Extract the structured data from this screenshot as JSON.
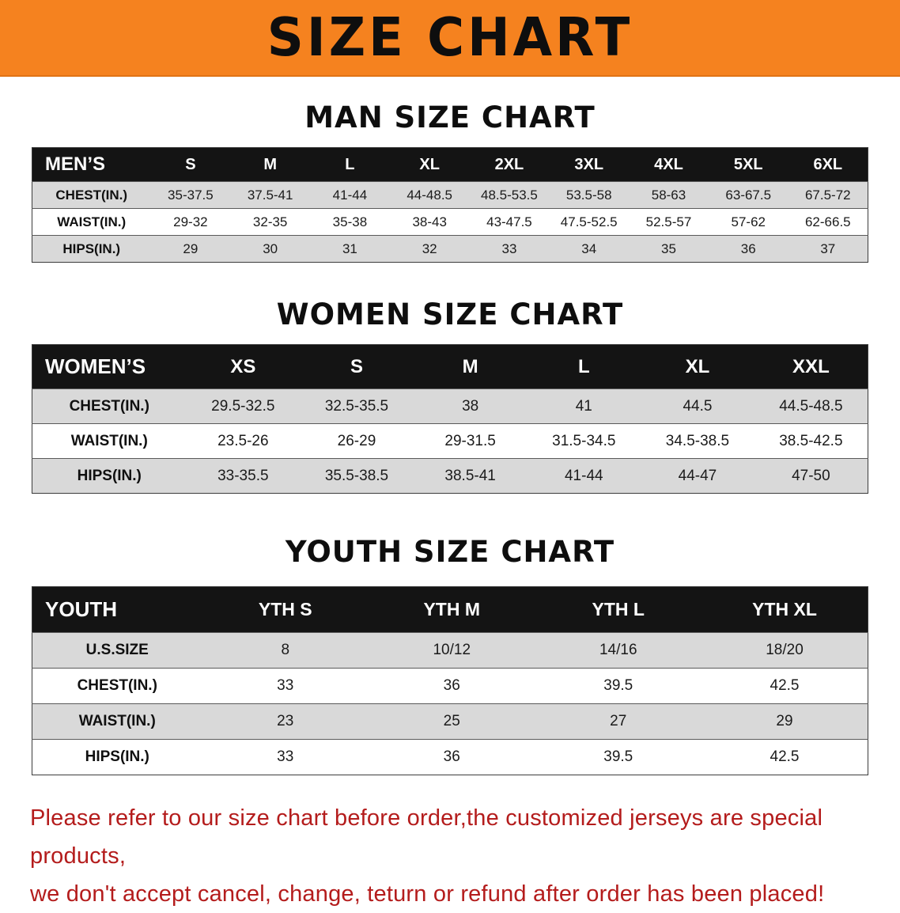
{
  "banner": {
    "title": "SIZE CHART"
  },
  "colors": {
    "banner_orange": "#f5821f",
    "table_header_black": "#141414",
    "row_stripe_gray": "#d9d9d9",
    "notice_red": "#b41c1c"
  },
  "sections": [
    {
      "title": "MAN SIZE CHART",
      "table": {
        "header": [
          "MEN’S",
          "S",
          "M",
          "L",
          "XL",
          "2XL",
          "3XL",
          "4XL",
          "5XL",
          "6XL"
        ],
        "rows": [
          [
            "CHEST(IN.)",
            "35-37.5",
            "37.5-41",
            "41-44",
            "44-48.5",
            "48.5-53.5",
            "53.5-58",
            "58-63",
            "63-67.5",
            "67.5-72"
          ],
          [
            "WAIST(IN.)",
            "29-32",
            "32-35",
            "35-38",
            "38-43",
            "43-47.5",
            "47.5-52.5",
            "52.5-57",
            "57-62",
            "62-66.5"
          ],
          [
            "HIPS(IN.)",
            "29",
            "30",
            "31",
            "32",
            "33",
            "34",
            "35",
            "36",
            "37"
          ]
        ]
      }
    },
    {
      "title": "WOMEN SIZE CHART",
      "table": {
        "header": [
          "WOMEN’S",
          "XS",
          "S",
          "M",
          "L",
          "XL",
          "XXL"
        ],
        "rows": [
          [
            "CHEST(IN.)",
            "29.5-32.5",
            "32.5-35.5",
            "38",
            "41",
            "44.5",
            "44.5-48.5"
          ],
          [
            "WAIST(IN.)",
            "23.5-26",
            "26-29",
            "29-31.5",
            "31.5-34.5",
            "34.5-38.5",
            "38.5-42.5"
          ],
          [
            "HIPS(IN.)",
            "33-35.5",
            "35.5-38.5",
            "38.5-41",
            "41-44",
            "44-47",
            "47-50"
          ]
        ]
      }
    },
    {
      "title": "YOUTH SIZE CHART",
      "table": {
        "header": [
          "YOUTH",
          "YTH S",
          "YTH M",
          "YTH L",
          "YTH XL"
        ],
        "rows": [
          [
            "U.S.SIZE",
            "8",
            "10/12",
            "14/16",
            "18/20"
          ],
          [
            "CHEST(IN.)",
            "33",
            "36",
            "39.5",
            "42.5"
          ],
          [
            "WAIST(IN.)",
            "23",
            "25",
            "27",
            "29"
          ],
          [
            "HIPS(IN.)",
            "33",
            "36",
            "39.5",
            "42.5"
          ]
        ]
      }
    }
  ],
  "footer": {
    "line1": "Please refer to our size chart before order,the customized jerseys are special products,",
    "line2": "we don't accept cancel, change, teturn or refund after order has been placed!"
  }
}
